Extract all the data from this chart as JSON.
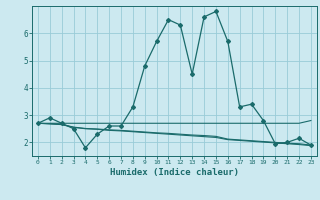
{
  "xlabel": "Humidex (Indice chaleur)",
  "background_color": "#cce9f0",
  "grid_color": "#99ccd8",
  "line_color": "#1a6b6b",
  "x_ticks": [
    0,
    1,
    2,
    3,
    4,
    5,
    6,
    7,
    8,
    9,
    10,
    11,
    12,
    13,
    14,
    15,
    16,
    17,
    18,
    19,
    20,
    21,
    22,
    23
  ],
  "y_ticks": [
    2,
    3,
    4,
    5,
    6
  ],
  "ylim": [
    1.5,
    7.0
  ],
  "xlim": [
    -0.5,
    23.5
  ],
  "series_main": [
    2.7,
    2.9,
    2.7,
    2.5,
    1.8,
    2.3,
    2.6,
    2.6,
    3.3,
    4.8,
    5.7,
    6.5,
    6.3,
    4.5,
    6.6,
    6.8,
    5.7,
    3.3,
    3.4,
    2.8,
    1.95,
    2.0,
    2.15,
    1.9
  ],
  "series_flat": [
    2.7,
    2.7,
    2.7,
    2.7,
    2.7,
    2.7,
    2.7,
    2.7,
    2.7,
    2.7,
    2.7,
    2.7,
    2.7,
    2.7,
    2.7,
    2.7,
    2.7,
    2.7,
    2.7,
    2.7,
    2.7,
    2.7,
    2.7,
    2.8
  ],
  "series_reg1": [
    2.7,
    2.68,
    2.65,
    2.55,
    2.5,
    2.48,
    2.44,
    2.42,
    2.39,
    2.36,
    2.33,
    2.3,
    2.27,
    2.24,
    2.21,
    2.18,
    2.1,
    2.07,
    2.04,
    2.01,
    1.98,
    1.95,
    1.92,
    1.88
  ],
  "series_reg2": [
    2.7,
    2.68,
    2.66,
    2.56,
    2.51,
    2.49,
    2.46,
    2.44,
    2.41,
    2.38,
    2.35,
    2.33,
    2.3,
    2.27,
    2.25,
    2.22,
    2.12,
    2.09,
    2.06,
    2.03,
    2.0,
    1.97,
    1.95,
    1.9
  ]
}
